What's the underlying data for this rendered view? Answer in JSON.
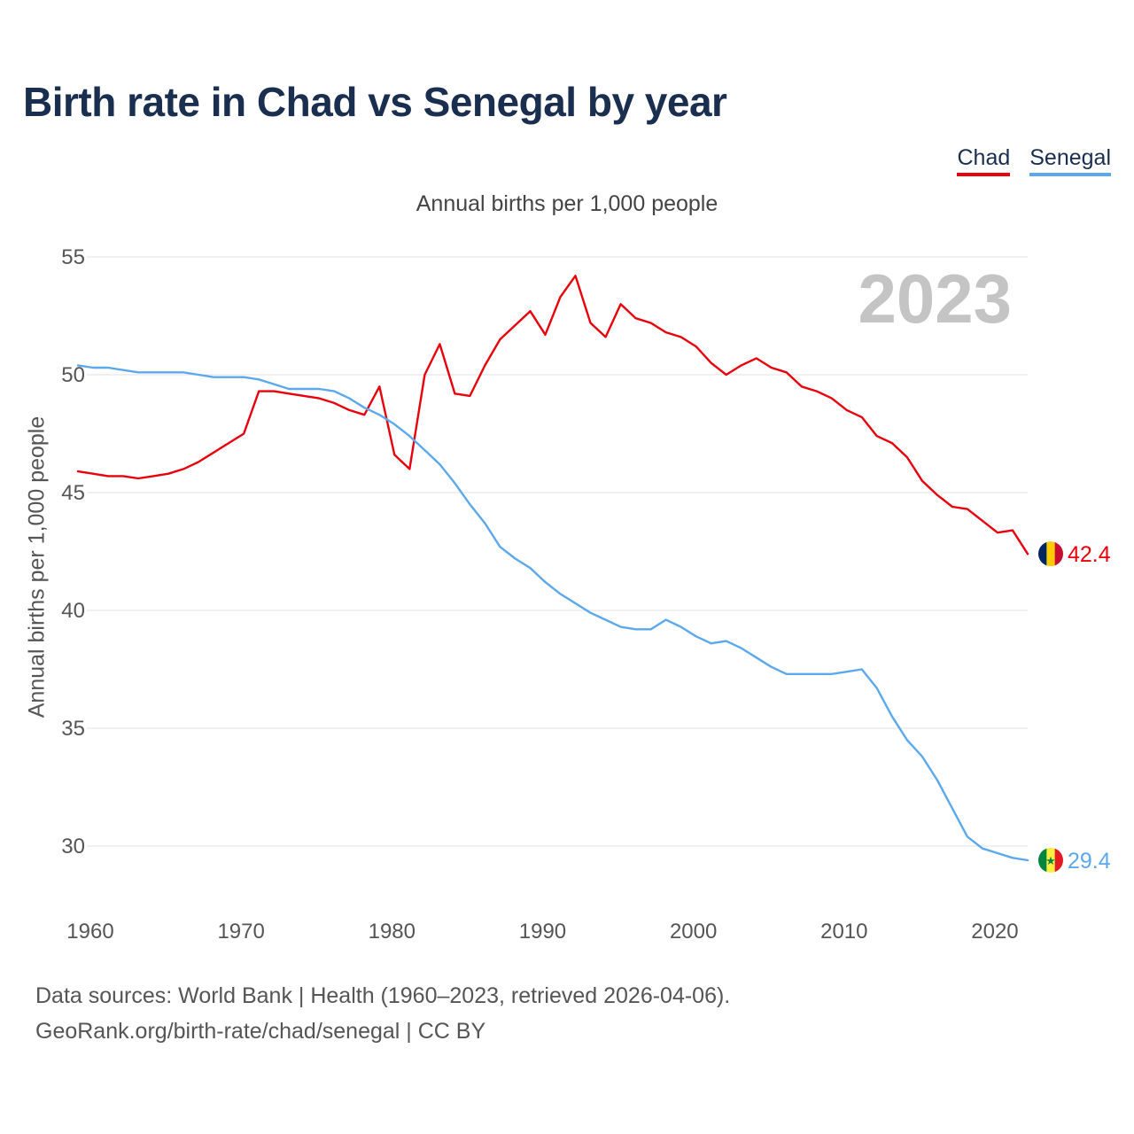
{
  "title": "Birth rate in Chad vs Senegal by year",
  "legend": {
    "items": [
      {
        "label": "Chad",
        "color": "#e8000b"
      },
      {
        "label": "Senegal",
        "color": "#5ca8ec"
      }
    ]
  },
  "year_badge": "2023",
  "footer": {
    "line1": "Data sources: World Bank | Health (1960–2023, retrieved 2026-04-06).",
    "line2": "GeoRank.org/birth-rate/chad/senegal | CC BY"
  },
  "end_labels": {
    "chad": "42.4",
    "senegal": "29.4"
  },
  "flags": {
    "chad": {
      "icon": "chad-flag-icon",
      "colors": [
        "#002664",
        "#fecb00",
        "#c60c30"
      ]
    },
    "senegal": {
      "icon": "senegal-flag-icon",
      "colors": [
        "#00853f",
        "#fdef42",
        "#e31b23"
      ],
      "star": "★"
    }
  },
  "chart_data": {
    "type": "line",
    "title": "Birth rate in Chad vs Senegal by year",
    "subtitle": "Annual births per 1,000 people",
    "xlabel": "",
    "ylabel": "Annual births per 1,000 people",
    "xlim": [
      1960,
      2023
    ],
    "ylim": [
      28,
      55
    ],
    "xticks": [
      1960,
      1970,
      1980,
      1990,
      2000,
      2010,
      2020
    ],
    "yticks": [
      30,
      35,
      40,
      45,
      50,
      55
    ],
    "grid": true,
    "legend_position": "top-right",
    "x": [
      1960,
      1961,
      1962,
      1963,
      1964,
      1965,
      1966,
      1967,
      1968,
      1969,
      1970,
      1971,
      1972,
      1973,
      1974,
      1975,
      1976,
      1977,
      1978,
      1979,
      1980,
      1981,
      1982,
      1983,
      1984,
      1985,
      1986,
      1987,
      1988,
      1989,
      1990,
      1991,
      1992,
      1993,
      1994,
      1995,
      1996,
      1997,
      1998,
      1999,
      2000,
      2001,
      2002,
      2003,
      2004,
      2005,
      2006,
      2007,
      2008,
      2009,
      2010,
      2011,
      2012,
      2013,
      2014,
      2015,
      2016,
      2017,
      2018,
      2019,
      2020,
      2021,
      2022,
      2023
    ],
    "series": [
      {
        "name": "Chad",
        "color": "#e8000b",
        "values": [
          45.9,
          45.8,
          45.7,
          45.7,
          45.6,
          45.7,
          45.8,
          46.0,
          46.3,
          46.7,
          47.1,
          47.5,
          49.3,
          49.3,
          49.2,
          49.1,
          49.0,
          48.8,
          48.5,
          48.3,
          49.5,
          46.6,
          46.0,
          50.0,
          51.3,
          49.2,
          49.1,
          50.4,
          51.5,
          52.1,
          52.7,
          51.7,
          53.3,
          54.2,
          52.2,
          51.6,
          53.0,
          52.4,
          52.2,
          51.8,
          51.6,
          51.2,
          50.5,
          50.0,
          50.4,
          50.7,
          50.3,
          50.1,
          49.5,
          49.3,
          49.0,
          48.5,
          48.2,
          47.4,
          47.1,
          46.5,
          45.5,
          44.9,
          44.4,
          44.3,
          43.8,
          43.3,
          43.4,
          42.4
        ]
      },
      {
        "name": "Senegal",
        "color": "#5ca8ec",
        "values": [
          50.4,
          50.3,
          50.3,
          50.2,
          50.1,
          50.1,
          50.1,
          50.1,
          50.0,
          49.9,
          49.9,
          49.9,
          49.8,
          49.6,
          49.4,
          49.4,
          49.4,
          49.3,
          49.0,
          48.6,
          48.3,
          47.9,
          47.4,
          46.8,
          46.2,
          45.4,
          44.5,
          43.7,
          42.7,
          42.2,
          41.8,
          41.2,
          40.7,
          40.3,
          39.9,
          39.6,
          39.3,
          39.2,
          39.2,
          39.6,
          39.3,
          38.9,
          38.6,
          38.7,
          38.4,
          38.0,
          37.6,
          37.3,
          37.3,
          37.3,
          37.3,
          37.4,
          37.5,
          36.7,
          35.5,
          34.5,
          33.8,
          32.8,
          31.6,
          30.4,
          29.9,
          29.7,
          29.5,
          29.4
        ]
      }
    ]
  }
}
